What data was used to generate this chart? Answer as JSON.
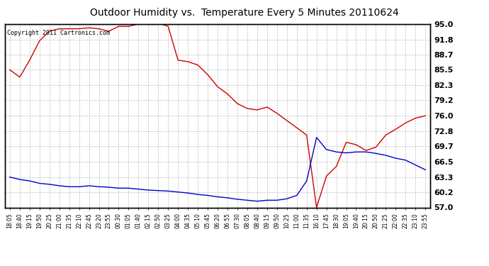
{
  "title": "Outdoor Humidity vs.  Temperature Every 5 Minutes 20110624",
  "copyright_text": "Copyright 2011 Cartronics.com",
  "background_color": "#ffffff",
  "plot_bg_color": "#ffffff",
  "grid_color": "#bbbbbb",
  "red_line_color": "#cc0000",
  "blue_line_color": "#0000cc",
  "ylim": [
    57.0,
    95.0
  ],
  "yticks": [
    57.0,
    60.2,
    63.3,
    66.5,
    69.7,
    72.8,
    76.0,
    79.2,
    82.3,
    85.5,
    88.7,
    91.8,
    95.0
  ],
  "x_labels": [
    "18:05",
    "18:40",
    "19:15",
    "19:50",
    "20:25",
    "21:00",
    "21:35",
    "22:10",
    "22:45",
    "23:20",
    "23:55",
    "00:30",
    "01:05",
    "01:40",
    "02:15",
    "02:50",
    "03:25",
    "04:00",
    "04:35",
    "05:10",
    "05:45",
    "06:20",
    "06:55",
    "07:30",
    "08:05",
    "08:40",
    "09:15",
    "09:50",
    "10:25",
    "11:00",
    "11:35",
    "16:10",
    "17:45",
    "18:30",
    "19:05",
    "19:40",
    "20:15",
    "20:50",
    "21:25",
    "22:00",
    "22:35",
    "23:10",
    "23:55"
  ],
  "red_y": [
    85.5,
    84.0,
    87.5,
    91.5,
    93.5,
    94.0,
    94.0,
    94.0,
    94.2,
    94.0,
    93.5,
    94.5,
    94.5,
    95.0,
    95.3,
    95.2,
    94.5,
    87.5,
    87.2,
    86.5,
    84.5,
    82.0,
    80.5,
    78.5,
    77.5,
    77.2,
    77.8,
    76.5,
    75.0,
    73.5,
    72.0,
    57.0,
    63.5,
    65.5,
    70.5,
    70.0,
    68.8,
    69.5,
    72.0,
    73.2,
    74.5,
    75.5,
    76.0
  ],
  "blue_y": [
    63.3,
    62.8,
    62.5,
    62.0,
    61.8,
    61.5,
    61.3,
    61.3,
    61.5,
    61.3,
    61.2,
    61.0,
    61.0,
    60.8,
    60.6,
    60.5,
    60.4,
    60.2,
    60.0,
    59.7,
    59.5,
    59.2,
    59.0,
    58.7,
    58.5,
    58.3,
    58.5,
    58.5,
    58.8,
    59.5,
    62.5,
    71.5,
    69.0,
    68.5,
    68.3,
    68.5,
    68.5,
    68.2,
    67.8,
    67.2,
    66.8,
    65.8,
    64.8
  ]
}
